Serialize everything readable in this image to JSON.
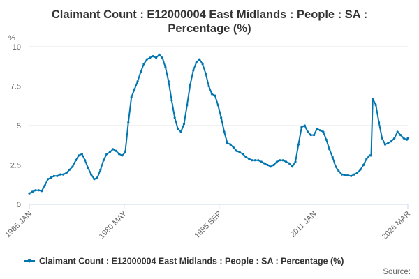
{
  "chart_data": {
    "type": "line",
    "title_lines": [
      "Claimant Count : E12000004 East Midlands : People : SA :",
      "Percentage (%)"
    ],
    "ylabel": "%",
    "ylim": [
      0,
      10
    ],
    "yticks": [
      "0",
      "2.5",
      "5",
      "7.5",
      "10"
    ],
    "xlim": [
      1965.0,
      2026.17
    ],
    "xticks": [
      {
        "label": "1965 JAN",
        "value": 1965.0
      },
      {
        "label": "1980 MAY",
        "value": 1980.33
      },
      {
        "label": "1995 SEP",
        "value": 1995.67
      },
      {
        "label": "2011 JAN",
        "value": 2011.0
      },
      {
        "label": "2026 MAR",
        "value": 2026.17
      }
    ],
    "grid": true,
    "legend_position": "bottom",
    "series": [
      {
        "name": "Claimant Count : E12000004 East Midlands : People : SA : Percentage (%)",
        "color": "#0075b0",
        "x": [
          1965.0,
          1965.5,
          1966.0,
          1966.5,
          1967.0,
          1967.5,
          1968.0,
          1968.5,
          1969.0,
          1969.5,
          1970.0,
          1970.5,
          1971.0,
          1971.5,
          1972.0,
          1972.5,
          1973.0,
          1973.5,
          1974.0,
          1974.5,
          1975.0,
          1975.5,
          1976.0,
          1976.5,
          1977.0,
          1977.5,
          1978.0,
          1978.5,
          1979.0,
          1979.5,
          1980.0,
          1980.5,
          1981.0,
          1981.5,
          1982.0,
          1982.5,
          1983.0,
          1983.5,
          1984.0,
          1984.5,
          1985.0,
          1985.5,
          1986.0,
          1986.5,
          1987.0,
          1987.5,
          1988.0,
          1988.5,
          1989.0,
          1989.5,
          1990.0,
          1990.5,
          1991.0,
          1991.5,
          1992.0,
          1992.5,
          1993.0,
          1993.5,
          1994.0,
          1994.5,
          1995.0,
          1995.5,
          1996.0,
          1996.5,
          1997.0,
          1997.5,
          1998.0,
          1998.5,
          1999.0,
          1999.5,
          2000.0,
          2000.5,
          2001.0,
          2001.5,
          2002.0,
          2002.5,
          2003.0,
          2003.5,
          2004.0,
          2004.5,
          2005.0,
          2005.5,
          2006.0,
          2006.5,
          2007.0,
          2007.5,
          2008.0,
          2008.5,
          2009.0,
          2009.5,
          2010.0,
          2010.5,
          2011.0,
          2011.5,
          2012.0,
          2012.5,
          2013.0,
          2013.5,
          2014.0,
          2014.5,
          2015.0,
          2015.5,
          2016.0,
          2016.5,
          2017.0,
          2017.5,
          2018.0,
          2018.5,
          2019.0,
          2019.5,
          2020.0,
          2020.25,
          2020.5,
          2021.0,
          2021.5,
          2022.0,
          2022.5,
          2023.0,
          2023.5,
          2024.0,
          2024.5,
          2025.0,
          2025.5,
          2026.0,
          2026.17
        ],
        "y": [
          0.7,
          0.8,
          0.9,
          0.9,
          0.85,
          1.2,
          1.6,
          1.7,
          1.8,
          1.8,
          1.9,
          1.9,
          2.0,
          2.2,
          2.4,
          2.8,
          3.1,
          3.2,
          2.8,
          2.3,
          1.9,
          1.6,
          1.7,
          2.2,
          2.8,
          3.2,
          3.3,
          3.5,
          3.4,
          3.2,
          3.1,
          3.3,
          5.2,
          6.8,
          7.3,
          7.8,
          8.4,
          8.9,
          9.2,
          9.3,
          9.4,
          9.3,
          9.5,
          9.3,
          8.7,
          7.8,
          6.6,
          5.5,
          4.8,
          4.6,
          5.1,
          6.3,
          7.6,
          8.5,
          9.0,
          9.2,
          8.9,
          8.3,
          7.5,
          7.0,
          6.9,
          6.3,
          5.5,
          4.6,
          3.9,
          3.8,
          3.6,
          3.4,
          3.3,
          3.2,
          3.0,
          2.9,
          2.8,
          2.8,
          2.8,
          2.7,
          2.6,
          2.5,
          2.4,
          2.5,
          2.7,
          2.8,
          2.8,
          2.7,
          2.6,
          2.4,
          2.7,
          3.8,
          4.9,
          5.0,
          4.6,
          4.4,
          4.4,
          4.8,
          4.7,
          4.6,
          4.1,
          3.5,
          3.0,
          2.4,
          2.1,
          1.9,
          1.85,
          1.85,
          1.8,
          1.9,
          2.0,
          2.2,
          2.5,
          2.9,
          3.1,
          3.1,
          6.7,
          6.3,
          5.2,
          4.2,
          3.8,
          3.9,
          4.0,
          4.2,
          4.6,
          4.4,
          4.2,
          4.1,
          4.2
        ]
      }
    ]
  },
  "source_label": "Source:"
}
